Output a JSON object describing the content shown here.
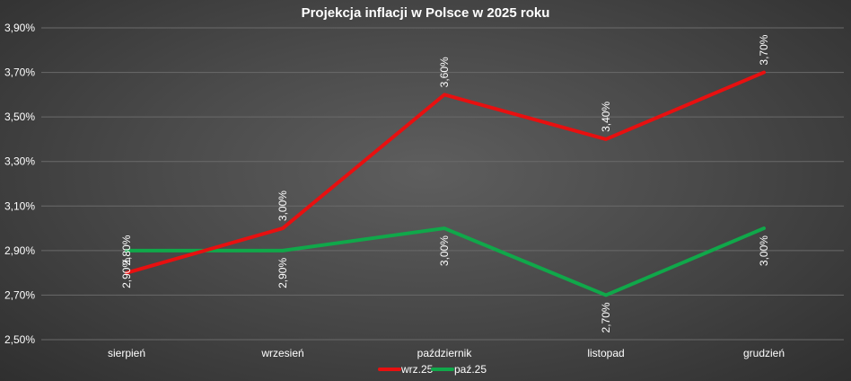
{
  "chart_data": {
    "type": "line",
    "title": "Projekcja inflacji w Polsce w 2025 roku",
    "categories": [
      "sierpień",
      "wrzesień",
      "październik",
      "listopad",
      "grudzień"
    ],
    "series": [
      {
        "name": "wrz.25",
        "color": "#e81010",
        "values": [
          2.8,
          3.0,
          3.6,
          3.4,
          3.7
        ],
        "labels": [
          "2,80%",
          "3,00%",
          "3,60%",
          "3,40%",
          "3,70%"
        ]
      },
      {
        "name": "paź.25",
        "color": "#10a84a",
        "values": [
          2.9,
          2.9,
          3.0,
          2.7,
          3.0
        ],
        "labels": [
          "2,90%",
          "2,90%",
          "3,00%",
          "2,70%",
          "3,00%"
        ]
      }
    ],
    "ylim": [
      2.5,
      3.9
    ],
    "yticks": [
      2.5,
      2.7,
      2.9,
      3.1,
      3.3,
      3.5,
      3.7,
      3.9
    ],
    "ytick_labels": [
      "2,50%",
      "2,70%",
      "2,90%",
      "3,10%",
      "3,30%",
      "3,50%",
      "3,70%",
      "3,90%"
    ],
    "grid": true,
    "legend_position": "bottom-center"
  }
}
